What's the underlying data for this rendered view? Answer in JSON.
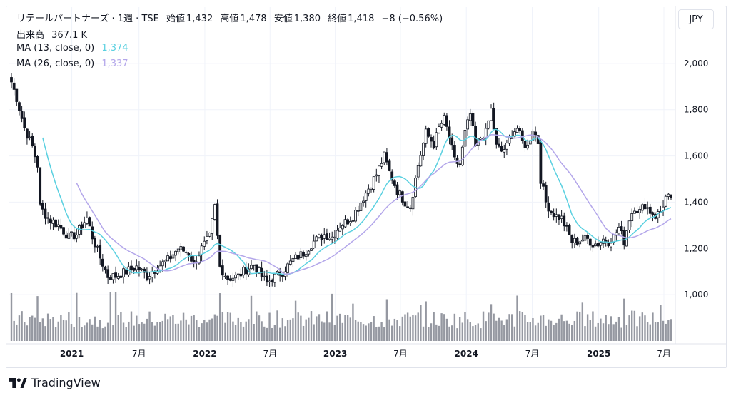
{
  "header": {
    "symbol": "リテールパートナーズ",
    "interval": "1週",
    "exchange": "TSE",
    "open_label": "始値",
    "open": "1,432",
    "high_label": "高値",
    "high": "1,478",
    "low_label": "安値",
    "low": "1,380",
    "close_label": "終値",
    "close": "1,418",
    "change": "−8 (−0.56%)",
    "volume_label": "出来高",
    "volume": "367.1 K",
    "ma13_label": "MA (13, close, 0)",
    "ma13_value": "1,374",
    "ma26_label": "MA (26, close, 0)",
    "ma26_value": "1,337"
  },
  "currency": "JPY",
  "brand": "TradingView",
  "colors": {
    "up": "#131722",
    "down": "#131722",
    "volume": "#9598a1",
    "ma13": "#5ad0e0",
    "ma26": "#b3a6ea",
    "grid": "#f0f3fa"
  },
  "chart_data": {
    "type": "candlestick",
    "yticks": [
      "2,000",
      "1,800",
      "1,600",
      "1,400",
      "1,200",
      "1,000"
    ],
    "ylim": [
      880,
      2120
    ],
    "xticks": [
      {
        "label": "2021",
        "bold": true,
        "pos": 0.095
      },
      {
        "label": "7月",
        "bold": false,
        "pos": 0.196
      },
      {
        "label": "2022",
        "bold": true,
        "pos": 0.295
      },
      {
        "label": "7月",
        "bold": false,
        "pos": 0.393
      },
      {
        "label": "2023",
        "bold": true,
        "pos": 0.491
      },
      {
        "label": "7月",
        "bold": false,
        "pos": 0.589
      },
      {
        "label": "2024",
        "bold": true,
        "pos": 0.688
      },
      {
        "label": "7月",
        "bold": false,
        "pos": 0.787
      },
      {
        "label": "2025",
        "bold": true,
        "pos": 0.887
      },
      {
        "label": "7月",
        "bold": false,
        "pos": 0.985
      }
    ],
    "close_anchors": [
      [
        0,
        1920
      ],
      [
        2,
        1850
      ],
      [
        5,
        1720
      ],
      [
        8,
        1640
      ],
      [
        10,
        1560
      ],
      [
        11,
        1380
      ],
      [
        14,
        1330
      ],
      [
        18,
        1300
      ],
      [
        22,
        1250
      ],
      [
        25,
        1260
      ],
      [
        27,
        1300
      ],
      [
        29,
        1330
      ],
      [
        31,
        1250
      ],
      [
        34,
        1160
      ],
      [
        37,
        1080
      ],
      [
        40,
        1080
      ],
      [
        44,
        1100
      ],
      [
        48,
        1120
      ],
      [
        52,
        1080
      ],
      [
        56,
        1120
      ],
      [
        60,
        1150
      ],
      [
        64,
        1200
      ],
      [
        68,
        1180
      ],
      [
        70,
        1130
      ],
      [
        73,
        1200
      ],
      [
        76,
        1250
      ],
      [
        78,
        1380
      ],
      [
        80,
        1120
      ],
      [
        83,
        1070
      ],
      [
        87,
        1080
      ],
      [
        90,
        1110
      ],
      [
        93,
        1130
      ],
      [
        96,
        1080
      ],
      [
        98,
        1050
      ],
      [
        100,
        1070
      ],
      [
        104,
        1100
      ],
      [
        108,
        1150
      ],
      [
        112,
        1180
      ],
      [
        116,
        1230
      ],
      [
        120,
        1260
      ],
      [
        123,
        1250
      ],
      [
        126,
        1300
      ],
      [
        129,
        1320
      ],
      [
        131,
        1340
      ],
      [
        134,
        1400
      ],
      [
        137,
        1460
      ],
      [
        140,
        1520
      ],
      [
        143,
        1600
      ],
      [
        145,
        1530
      ],
      [
        148,
        1450
      ],
      [
        151,
        1400
      ],
      [
        153,
        1380
      ],
      [
        156,
        1560
      ],
      [
        159,
        1700
      ],
      [
        162,
        1650
      ],
      [
        164,
        1720
      ],
      [
        166,
        1760
      ],
      [
        168,
        1680
      ],
      [
        170,
        1580
      ],
      [
        172,
        1560
      ],
      [
        174,
        1700
      ],
      [
        176,
        1780
      ],
      [
        178,
        1640
      ],
      [
        180,
        1680
      ],
      [
        182,
        1700
      ],
      [
        184,
        1800
      ],
      [
        186,
        1640
      ],
      [
        188,
        1620
      ],
      [
        190,
        1640
      ],
      [
        192,
        1700
      ],
      [
        194,
        1720
      ],
      [
        196,
        1660
      ],
      [
        198,
        1640
      ],
      [
        200,
        1720
      ],
      [
        202,
        1660
      ],
      [
        203,
        1500
      ],
      [
        205,
        1400
      ],
      [
        207,
        1360
      ],
      [
        209,
        1340
      ],
      [
        211,
        1330
      ],
      [
        213,
        1280
      ],
      [
        215,
        1230
      ],
      [
        217,
        1230
      ],
      [
        219,
        1240
      ],
      [
        221,
        1240
      ],
      [
        223,
        1220
      ],
      [
        225,
        1220
      ],
      [
        227,
        1240
      ],
      [
        229,
        1230
      ],
      [
        231,
        1250
      ],
      [
        233,
        1290
      ],
      [
        235,
        1230
      ],
      [
        237,
        1330
      ],
      [
        239,
        1380
      ],
      [
        241,
        1360
      ],
      [
        243,
        1390
      ],
      [
        245,
        1360
      ],
      [
        247,
        1340
      ],
      [
        249,
        1360
      ],
      [
        251,
        1420
      ],
      [
        253,
        1418
      ]
    ],
    "total_bars": 254,
    "ma13_last": 1374,
    "ma26_last": 1337
  }
}
